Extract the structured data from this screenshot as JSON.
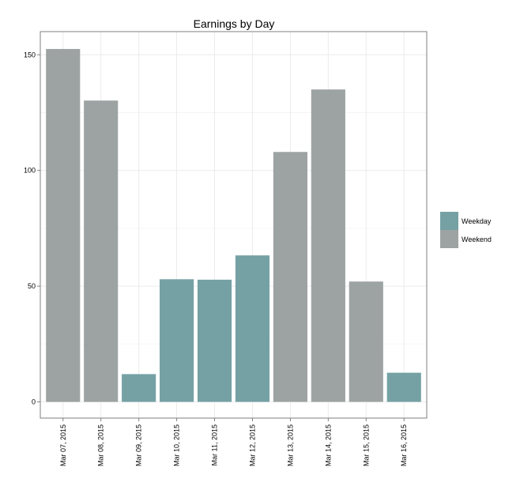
{
  "chart_data": {
    "type": "bar",
    "title": "Earnings by Day",
    "xlabel": "",
    "ylabel": "",
    "categories": [
      "Mar 07, 2015",
      "Mar 08, 2015",
      "Mar 09, 2015",
      "Mar 10, 2015",
      "Mar 11, 2015",
      "Mar 12, 2015",
      "Mar 13, 2015",
      "Mar 14, 2015",
      "Mar 15, 2015",
      "Mar 16, 2015"
    ],
    "values": [
      152.5,
      130.2,
      12.0,
      53.0,
      52.8,
      63.3,
      108.0,
      135.0,
      52.0,
      12.6
    ],
    "day_type": [
      "Weekend",
      "Weekend",
      "Weekday",
      "Weekday",
      "Weekday",
      "Weekday",
      "Weekend",
      "Weekend",
      "Weekend",
      "Weekday"
    ],
    "ylim": [
      -7,
      160
    ],
    "yticks": [
      0,
      50,
      100,
      150
    ],
    "ytick_labels": [
      "0",
      "50",
      "100",
      "150"
    ],
    "grid": true,
    "legend": {
      "position": "right",
      "items": [
        {
          "label": "Weekday",
          "color": "#75a1a4"
        },
        {
          "label": "Weekend",
          "color": "#9da3a3"
        }
      ]
    }
  }
}
